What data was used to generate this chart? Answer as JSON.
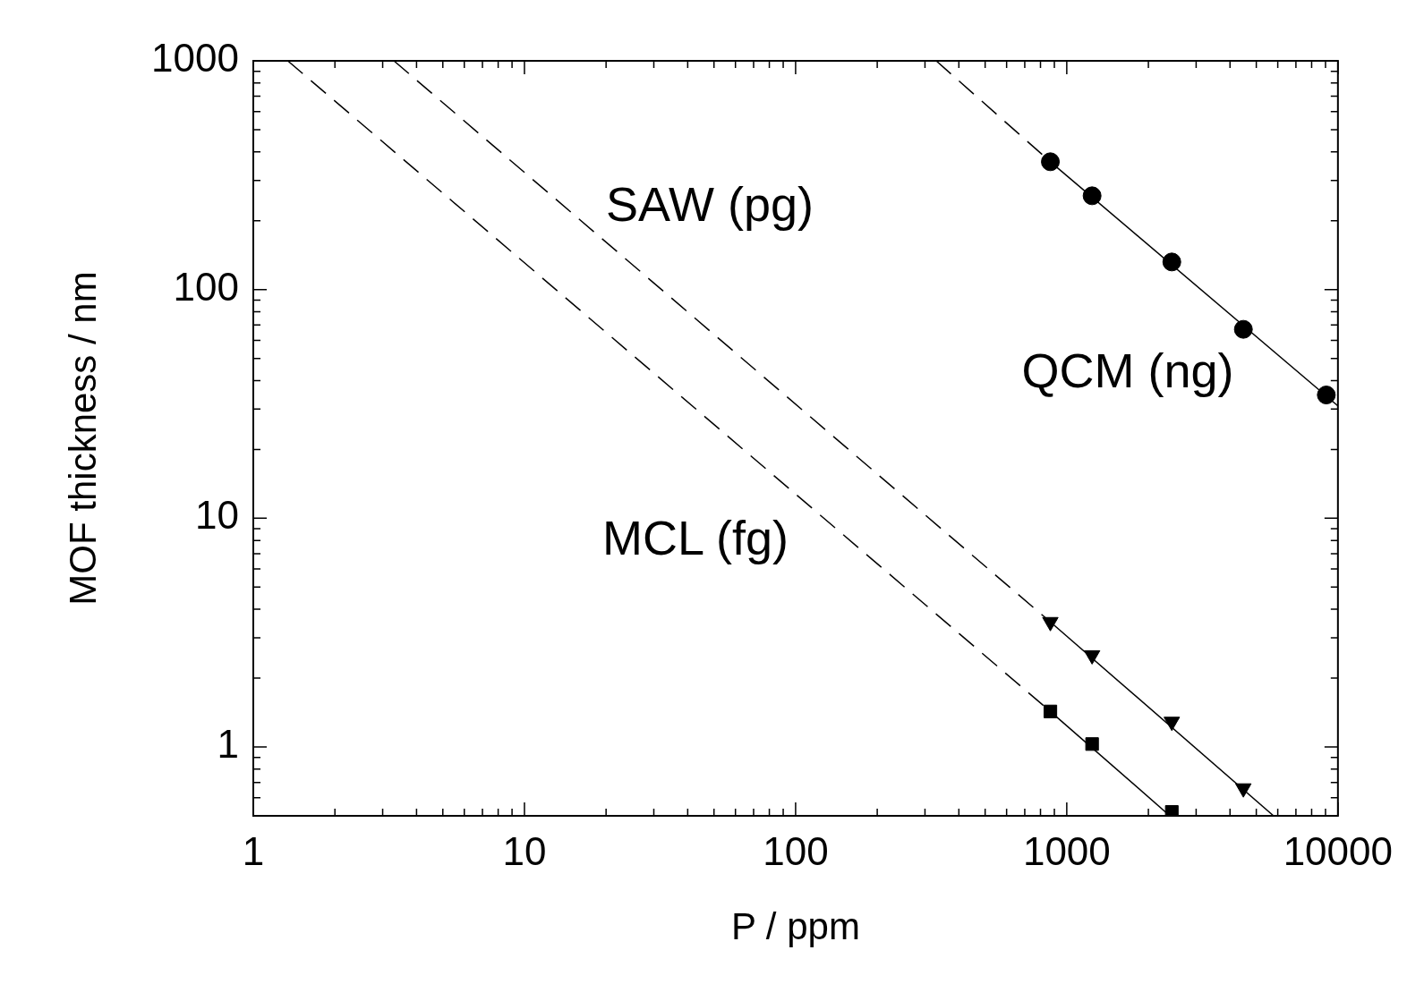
{
  "chart_data": {
    "type": "scatter",
    "xlabel": "P / ppm",
    "ylabel": "MOF thickness / nm",
    "log": "xy",
    "grid": false,
    "legend": false,
    "xlim": [
      1,
      10000
    ],
    "ylim": [
      0.5,
      1000
    ],
    "xticks": [
      1,
      {
        "value": 2,
        "label": null
      },
      {
        "value": 3,
        "label": null
      },
      {
        "value": 4,
        "label": null
      },
      {
        "value": 5,
        "label": null
      },
      {
        "value": 6,
        "label": null
      },
      {
        "value": 7,
        "label": null
      },
      {
        "value": 8,
        "label": null
      },
      {
        "value": 9,
        "label": null
      },
      10,
      {
        "value": 20,
        "label": null
      },
      {
        "value": 30,
        "label": null
      },
      {
        "value": 40,
        "label": null
      },
      {
        "value": 50,
        "label": null
      },
      {
        "value": 60,
        "label": null
      },
      {
        "value": 70,
        "label": null
      },
      {
        "value": 80,
        "label": null
      },
      {
        "value": 90,
        "label": null
      },
      100,
      {
        "value": 200,
        "label": null
      },
      {
        "value": 300,
        "label": null
      },
      {
        "value": 400,
        "label": null
      },
      {
        "value": 500,
        "label": null
      },
      {
        "value": 600,
        "label": null
      },
      {
        "value": 700,
        "label": null
      },
      {
        "value": 800,
        "label": null
      },
      {
        "value": 900,
        "label": null
      },
      1000,
      {
        "value": 2000,
        "label": null
      },
      {
        "value": 3000,
        "label": null
      },
      {
        "value": 4000,
        "label": null
      },
      {
        "value": 5000,
        "label": null
      },
      {
        "value": 6000,
        "label": null
      },
      {
        "value": 7000,
        "label": null
      },
      {
        "value": 8000,
        "label": null
      },
      {
        "value": 9000,
        "label": null
      },
      10000
    ],
    "yticks": [
      {
        "value": 0.5,
        "label": null
      },
      {
        "value": 0.6,
        "label": null
      },
      {
        "value": 0.7,
        "label": null
      },
      {
        "value": 0.8,
        "label": null
      },
      {
        "value": 0.9,
        "label": null
      },
      1,
      {
        "value": 2,
        "label": null
      },
      {
        "value": 3,
        "label": null
      },
      {
        "value": 4,
        "label": null
      },
      {
        "value": 5,
        "label": null
      },
      {
        "value": 6,
        "label": null
      },
      {
        "value": 7,
        "label": null
      },
      {
        "value": 8,
        "label": null
      },
      {
        "value": 9,
        "label": null
      },
      10,
      {
        "value": 20,
        "label": null
      },
      {
        "value": 30,
        "label": null
      },
      {
        "value": 40,
        "label": null
      },
      {
        "value": 50,
        "label": null
      },
      {
        "value": 60,
        "label": null
      },
      {
        "value": 70,
        "label": null
      },
      {
        "value": 80,
        "label": null
      },
      {
        "value": 90,
        "label": null
      },
      100,
      {
        "value": 200,
        "label": null
      },
      {
        "value": 300,
        "label": null
      },
      {
        "value": 400,
        "label": null
      },
      {
        "value": 500,
        "label": null
      },
      {
        "value": 600,
        "label": null
      },
      {
        "value": 700,
        "label": null
      },
      {
        "value": 800,
        "label": null
      },
      {
        "value": 900,
        "label": null
      },
      1000
    ],
    "series": [
      {
        "type": "scatter",
        "marker": "circle",
        "color": "#000000",
        "x": [
          870,
          1240,
          2440,
          4480,
          9060
        ],
        "values": [
          362,
          257,
          132,
          67,
          34.6
        ]
      },
      {
        "type": "scatter",
        "marker": "triangle",
        "color": "#000000",
        "x": [
          870,
          1240,
          2440,
          4480
        ],
        "values": [
          3.52,
          2.52,
          1.29,
          0.66
        ]
      },
      {
        "type": "scatter",
        "marker": "square",
        "color": "#000000",
        "x": [
          870,
          1240,
          2440
        ],
        "values": [
          1.43,
          1.03,
          0.52
        ]
      },
      {
        "type": "line",
        "line_style": "dashed",
        "color": "#000000",
        "x": [
          330,
          870
        ],
        "values": [
          1000,
          362
        ]
      },
      {
        "type": "line",
        "line_style": "solid",
        "color": "#000000",
        "x": [
          870,
          10000
        ],
        "values": [
          362,
          31
        ]
      },
      {
        "type": "line",
        "line_style": "dashed",
        "color": "#000000",
        "x": [
          3.3,
          870
        ],
        "values": [
          1000,
          3.52
        ]
      },
      {
        "type": "line",
        "line_style": "solid",
        "color": "#000000",
        "x": [
          870,
          5790
        ],
        "values": [
          3.52,
          0.5
        ]
      },
      {
        "type": "line",
        "line_style": "dashed",
        "color": "#000000",
        "x": [
          1.34,
          870
        ],
        "values": [
          1000,
          1.43
        ]
      },
      {
        "type": "line",
        "line_style": "solid",
        "color": "#000000",
        "x": [
          870,
          2400
        ],
        "values": [
          1.43,
          0.5
        ]
      }
    ],
    "annotations": [
      "SAW (pg)",
      "QCM (ng)",
      "MCL (fg)"
    ]
  }
}
